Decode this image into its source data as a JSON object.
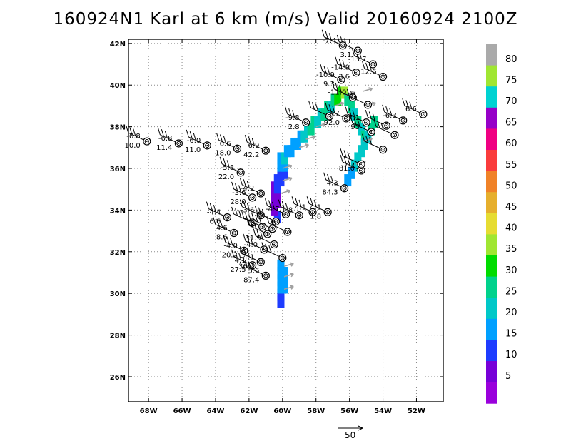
{
  "title": "160924N1 Karl at 6 km (m/s) Valid 20160924 2100Z",
  "map": {
    "lon_range": [
      -69.2,
      -50.4
    ],
    "lat_range": [
      24.8,
      42.2
    ],
    "lon_ticks": [
      "68W",
      "66W",
      "64W",
      "62W",
      "60W",
      "58W",
      "56W",
      "54W",
      "52W"
    ],
    "lat_ticks": [
      "26N",
      "28N",
      "30N",
      "32N",
      "34N",
      "36N",
      "38N",
      "40N",
      "42N"
    ],
    "grid": "dotted"
  },
  "reference_vector": {
    "label": "50"
  },
  "colorbar": {
    "labels": [
      "5",
      "10",
      "15",
      "20",
      "25",
      "30",
      "35",
      "40",
      "45",
      "50",
      "55",
      "60",
      "65",
      "70",
      "75",
      "80"
    ],
    "colors": [
      "#9a00dc",
      "#7700d8",
      "#1e3cff",
      "#00a0ff",
      "#00c8c8",
      "#00d28c",
      "#00dc00",
      "#a0e632",
      "#e6dc32",
      "#e6af2d",
      "#f08228",
      "#fa3c3c",
      "#f00082",
      "#9600c8",
      "#00d2d2",
      "#a0e632",
      "#aaaaaa"
    ]
  },
  "swath": [
    {
      "lon": -60.1,
      "lat": 29.6,
      "c": "#1e3cff"
    },
    {
      "lon": -60.1,
      "lat": 29.95,
      "c": "#1e3cff"
    },
    {
      "lon": -60.1,
      "lat": 30.3,
      "c": "#00a0ff"
    },
    {
      "lon": -59.9,
      "lat": 30.3,
      "c": "#00a0ff"
    },
    {
      "lon": -60.1,
      "lat": 30.65,
      "c": "#00a0ff"
    },
    {
      "lon": -59.9,
      "lat": 30.65,
      "c": "#00a0ff"
    },
    {
      "lon": -60.1,
      "lat": 31.0,
      "c": "#00a0ff"
    },
    {
      "lon": -59.9,
      "lat": 31.0,
      "c": "#00a0ff"
    },
    {
      "lon": -60.1,
      "lat": 31.35,
      "c": "#00a0ff"
    },
    {
      "lon": -60.3,
      "lat": 33.7,
      "c": "#1e3cff"
    },
    {
      "lon": -60.5,
      "lat": 34.05,
      "c": "#7700d8"
    },
    {
      "lon": -60.5,
      "lat": 34.4,
      "c": "#7700d8"
    },
    {
      "lon": -60.3,
      "lat": 34.4,
      "c": "#7700d8"
    },
    {
      "lon": -60.5,
      "lat": 34.75,
      "c": "#7700d8"
    },
    {
      "lon": -60.3,
      "lat": 34.75,
      "c": "#7700d8"
    },
    {
      "lon": -60.5,
      "lat": 35.1,
      "c": "#7700d8"
    },
    {
      "lon": -60.3,
      "lat": 35.1,
      "c": "#1e3cff"
    },
    {
      "lon": -60.3,
      "lat": 35.45,
      "c": "#1e3cff"
    },
    {
      "lon": -60.1,
      "lat": 35.45,
      "c": "#1e3cff"
    },
    {
      "lon": -60.1,
      "lat": 35.8,
      "c": "#1e3cff"
    },
    {
      "lon": -59.9,
      "lat": 35.8,
      "c": "#1e3cff"
    },
    {
      "lon": -60.1,
      "lat": 36.15,
      "c": "#00a0ff"
    },
    {
      "lon": -59.9,
      "lat": 36.15,
      "c": "#00a0ff"
    },
    {
      "lon": -60.1,
      "lat": 36.5,
      "c": "#00a0ff"
    },
    {
      "lon": -59.9,
      "lat": 36.5,
      "c": "#00c8c8"
    },
    {
      "lon": -59.7,
      "lat": 36.85,
      "c": "#00a0ff"
    },
    {
      "lon": -59.5,
      "lat": 36.85,
      "c": "#00a0ff"
    },
    {
      "lon": -59.3,
      "lat": 37.2,
      "c": "#00a0ff"
    },
    {
      "lon": -59.1,
      "lat": 37.2,
      "c": "#00a0ff"
    },
    {
      "lon": -58.9,
      "lat": 37.55,
      "c": "#00a0ff"
    },
    {
      "lon": -58.7,
      "lat": 37.55,
      "c": "#00c8c8"
    },
    {
      "lon": -58.5,
      "lat": 37.9,
      "c": "#00c8c8"
    },
    {
      "lon": -58.3,
      "lat": 37.9,
      "c": "#00d28c"
    },
    {
      "lon": -58.1,
      "lat": 38.25,
      "c": "#00d28c"
    },
    {
      "lon": -57.9,
      "lat": 38.25,
      "c": "#00c8c8"
    },
    {
      "lon": -57.7,
      "lat": 38.6,
      "c": "#00c8c8"
    },
    {
      "lon": -57.5,
      "lat": 38.6,
      "c": "#00d28c"
    },
    {
      "lon": -57.3,
      "lat": 38.95,
      "c": "#00d28c"
    },
    {
      "lon": -57.1,
      "lat": 38.95,
      "c": "#00c8c8"
    },
    {
      "lon": -56.9,
      "lat": 39.3,
      "c": "#00d28c"
    },
    {
      "lon": -56.7,
      "lat": 39.3,
      "c": "#00dc00"
    },
    {
      "lon": -56.5,
      "lat": 39.65,
      "c": "#00dc00"
    },
    {
      "lon": -56.3,
      "lat": 39.65,
      "c": "#a0e632"
    },
    {
      "lon": -56.1,
      "lat": 39.3,
      "c": "#00d28c"
    },
    {
      "lon": -55.9,
      "lat": 38.95,
      "c": "#00d28c"
    },
    {
      "lon": -55.7,
      "lat": 38.6,
      "c": "#00c8c8"
    },
    {
      "lon": -55.5,
      "lat": 38.25,
      "c": "#00d28c"
    },
    {
      "lon": -55.3,
      "lat": 37.9,
      "c": "#00c8c8"
    },
    {
      "lon": -55.1,
      "lat": 37.55,
      "c": "#00d28c"
    },
    {
      "lon": -54.9,
      "lat": 37.55,
      "c": "#00c8c8"
    },
    {
      "lon": -55.1,
      "lat": 37.2,
      "c": "#00c8c8"
    },
    {
      "lon": -55.3,
      "lat": 36.85,
      "c": "#00c8c8"
    },
    {
      "lon": -55.5,
      "lat": 36.5,
      "c": "#00c8c8"
    },
    {
      "lon": -55.7,
      "lat": 36.15,
      "c": "#00c8c8"
    },
    {
      "lon": -55.9,
      "lat": 35.8,
      "c": "#00a0ff"
    },
    {
      "lon": -56.1,
      "lat": 35.45,
      "c": "#00a0ff"
    },
    {
      "lon": -54.7,
      "lat": 37.9,
      "c": "#00d28c"
    },
    {
      "lon": -54.5,
      "lat": 38.25,
      "c": "#00d28c"
    }
  ],
  "vectors": [
    {
      "lon": -59.0,
      "lat": 37.0
    },
    {
      "lon": -58.6,
      "lat": 37.4
    },
    {
      "lon": -58.0,
      "lat": 38.0
    },
    {
      "lon": -57.5,
      "lat": 38.5
    },
    {
      "lon": -56.9,
      "lat": 39.0
    },
    {
      "lon": -56.2,
      "lat": 39.5
    },
    {
      "lon": -55.2,
      "lat": 39.7
    },
    {
      "lon": -55.0,
      "lat": 39.0
    },
    {
      "lon": -55.2,
      "lat": 37.3
    },
    {
      "lon": -55.6,
      "lat": 36.2
    },
    {
      "lon": -59.9,
      "lat": 30.8
    },
    {
      "lon": -59.9,
      "lat": 30.2
    },
    {
      "lon": -59.9,
      "lat": 31.3
    },
    {
      "lon": -60.0,
      "lat": 36.0
    },
    {
      "lon": -60.0,
      "lat": 35.4
    },
    {
      "lon": -60.1,
      "lat": 34.8
    }
  ],
  "obs": [
    {
      "lon": -68.1,
      "lat": 37.3,
      "u": "-6.8",
      "l": "10.0"
    },
    {
      "lon": -66.2,
      "lat": 37.2,
      "u": "-6.8",
      "l": "11.4"
    },
    {
      "lon": -64.5,
      "lat": 37.1,
      "u": "-6.0",
      "l": "11.0"
    },
    {
      "lon": -62.7,
      "lat": 36.95,
      "u": "6.6",
      "l": "18.0"
    },
    {
      "lon": -61.0,
      "lat": 36.85,
      "u": "6.9",
      "l": "42.2"
    },
    {
      "lon": -62.5,
      "lat": 35.8,
      "u": "-5.8",
      "l": "22.0"
    },
    {
      "lon": -61.3,
      "lat": 34.8,
      "u": "-4.2",
      "l": ""
    },
    {
      "lon": -61.8,
      "lat": 34.6,
      "u": "-3.6",
      "l": "28.0"
    },
    {
      "lon": -61.3,
      "lat": 33.75,
      "u": "-3.6",
      "l": ""
    },
    {
      "lon": -63.3,
      "lat": 33.65,
      "u": "-4.4",
      "l": "6.6"
    },
    {
      "lon": -62.9,
      "lat": 32.9,
      "u": "-4.6",
      "l": "8.6"
    },
    {
      "lon": -61.8,
      "lat": 33.4,
      "u": "",
      "l": ""
    },
    {
      "lon": -61.2,
      "lat": 33.2,
      "u": "",
      "l": ""
    },
    {
      "lon": -60.9,
      "lat": 32.85,
      "u": "",
      "l": "31.9"
    },
    {
      "lon": -60.6,
      "lat": 33.1,
      "u": "",
      "l": ""
    },
    {
      "lon": -60.4,
      "lat": 33.45,
      "u": "",
      "l": ""
    },
    {
      "lon": -59.7,
      "lat": 32.95,
      "u": "",
      "l": ""
    },
    {
      "lon": -62.3,
      "lat": 32.05,
      "u": "-4.0",
      "l": "20.2"
    },
    {
      "lon": -61.1,
      "lat": 32.1,
      "u": "-4.0",
      "l": ""
    },
    {
      "lon": -60.5,
      "lat": 32.35,
      "u": "",
      "l": ""
    },
    {
      "lon": -61.3,
      "lat": 31.5,
      "u": "-4.1",
      "l": "36.1"
    },
    {
      "lon": -60.0,
      "lat": 31.7,
      "u": "",
      "l": ""
    },
    {
      "lon": -61.8,
      "lat": 31.35,
      "u": "4.1",
      "l": "27.5"
    },
    {
      "lon": -61.0,
      "lat": 30.85,
      "u": "5.6",
      "l": "87.4"
    },
    {
      "lon": -59.0,
      "lat": 33.75,
      "u": "1.8",
      "l": ""
    },
    {
      "lon": -58.2,
      "lat": 33.9,
      "u": "4.1",
      "l": ""
    },
    {
      "lon": -59.8,
      "lat": 33.8,
      "u": "-4.7",
      "l": ""
    },
    {
      "lon": -57.3,
      "lat": 33.9,
      "u": "4.1",
      "l": "1.8"
    },
    {
      "lon": -56.3,
      "lat": 35.05,
      "u": "-4.3",
      "l": "84.3"
    },
    {
      "lon": -55.3,
      "lat": 35.9,
      "u": "-7.3",
      "l": ""
    },
    {
      "lon": -55.3,
      "lat": 36.2,
      "u": "",
      "l": "81.0"
    },
    {
      "lon": -58.6,
      "lat": 38.2,
      "u": "-9.8",
      "l": "2.8"
    },
    {
      "lon": -57.2,
      "lat": 38.5,
      "u": "",
      "l": ""
    },
    {
      "lon": -56.2,
      "lat": 38.4,
      "u": "-7.7",
      "l": "92.0"
    },
    {
      "lon": -55.0,
      "lat": 38.2,
      "u": "-7.1",
      "l": "93"
    },
    {
      "lon": -54.7,
      "lat": 37.75,
      "u": "",
      "l": ""
    },
    {
      "lon": -53.8,
      "lat": 38.05,
      "u": "",
      "l": ""
    },
    {
      "lon": -53.3,
      "lat": 37.6,
      "u": "",
      "l": ""
    },
    {
      "lon": -52.8,
      "lat": 38.3,
      "u": "-6.3",
      "l": ""
    },
    {
      "lon": -51.6,
      "lat": 38.6,
      "u": "6.6",
      "l": ""
    },
    {
      "lon": -54.0,
      "lat": 36.9,
      "u": "",
      "l": ""
    },
    {
      "lon": -55.8,
      "lat": 39.4,
      "u": "-11.0",
      "l": ""
    },
    {
      "lon": -56.5,
      "lat": 40.25,
      "u": "-10.9",
      "l": "9.3"
    },
    {
      "lon": -54.0,
      "lat": 40.4,
      "u": "-12.6",
      "l": ""
    },
    {
      "lon": -54.6,
      "lat": 41.0,
      "u": "-13.7",
      "l": ""
    },
    {
      "lon": -55.6,
      "lat": 40.6,
      "u": "-14.9",
      "l": "3.6"
    },
    {
      "lon": -55.5,
      "lat": 41.65,
      "u": "",
      "l": "3.1"
    },
    {
      "lon": -56.4,
      "lat": 41.9,
      "u": "-7.4",
      "l": ""
    },
    {
      "lon": -54.9,
      "lat": 39.05,
      "u": "",
      "l": ""
    }
  ]
}
